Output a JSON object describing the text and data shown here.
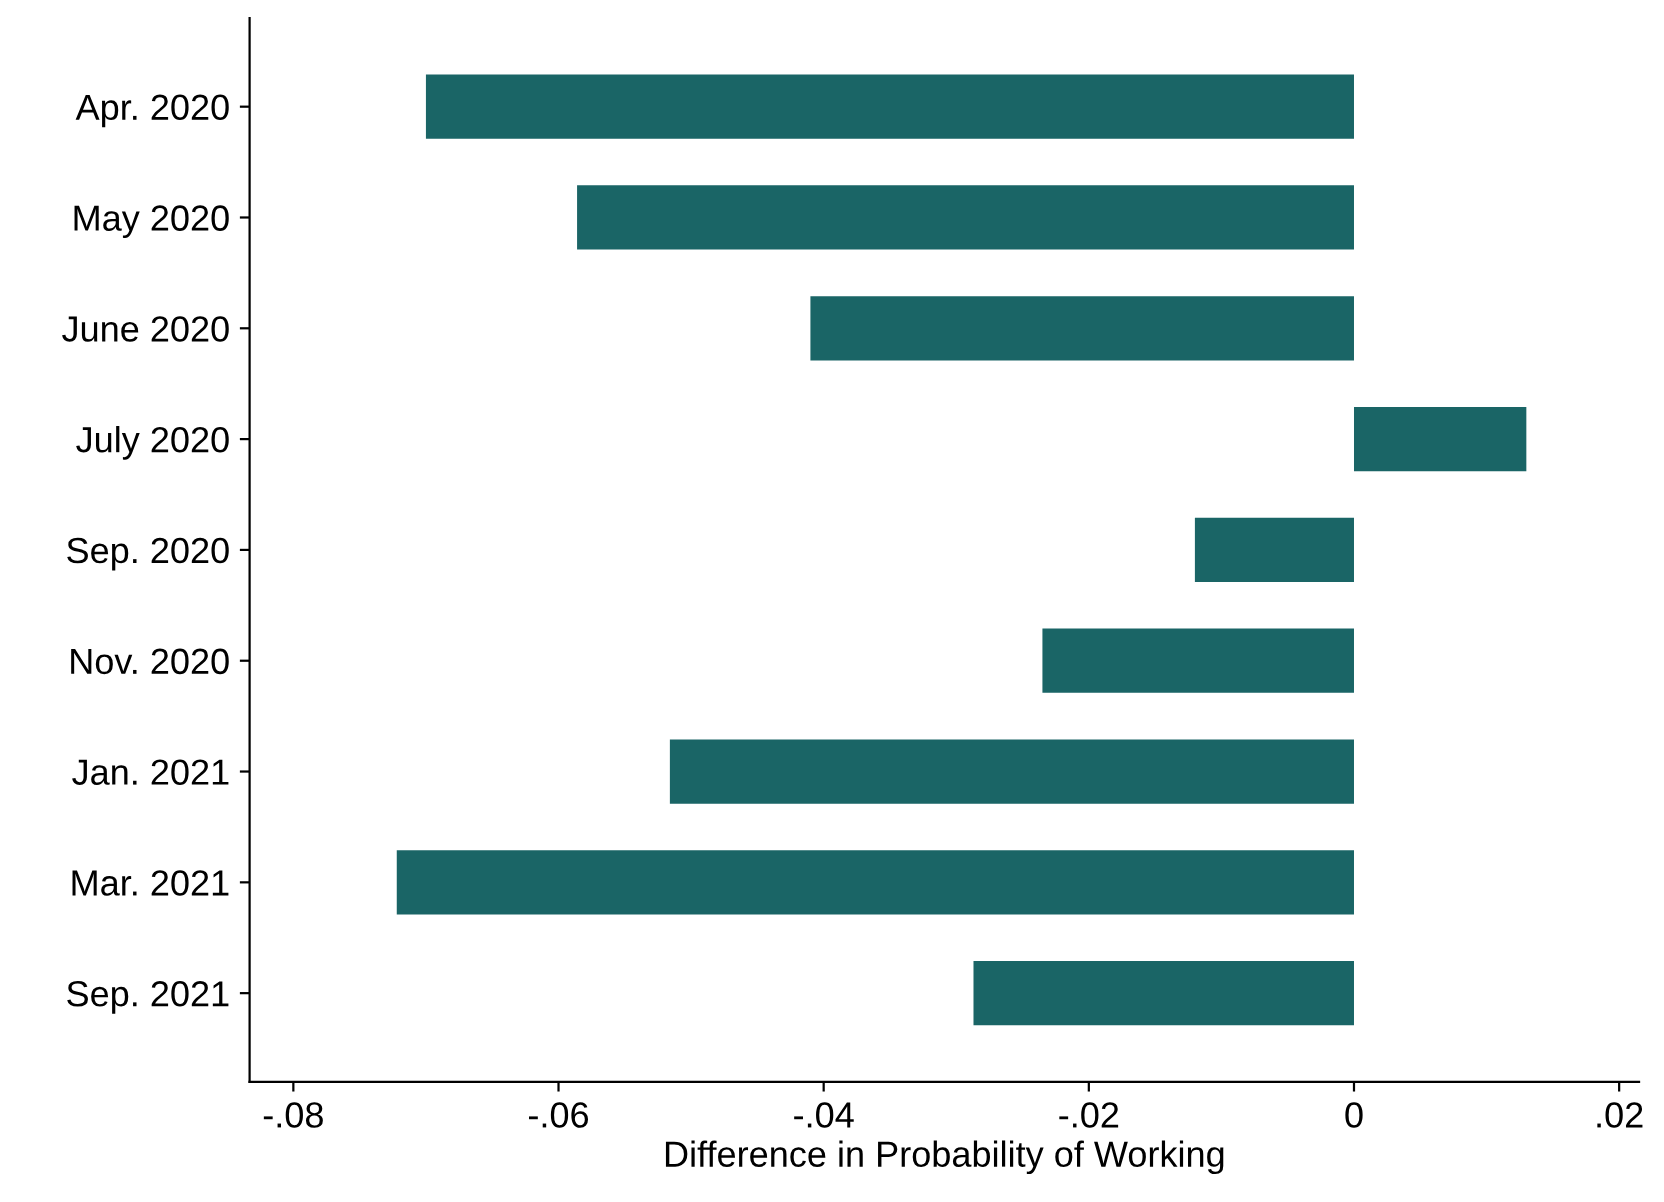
{
  "chart_data": {
    "type": "bar",
    "orientation": "horizontal",
    "xlabel": "Difference in Probability of Working",
    "categories": [
      "Apr. 2020",
      "May 2020",
      "June 2020",
      "July 2020",
      "Sep. 2020",
      "Nov. 2020",
      "Jan. 2021",
      "Mar. 2021",
      "Sep. 2021"
    ],
    "values": [
      -0.07,
      -0.0586,
      -0.041,
      0.013,
      -0.012,
      -0.0235,
      -0.0516,
      -0.0722,
      -0.0287
    ],
    "color": "#1a6566",
    "xlim": [
      -0.0833,
      0.0215
    ],
    "xticks": [
      {
        "value": -0.08,
        "label": "-.08"
      },
      {
        "value": -0.06,
        "label": "-.06"
      },
      {
        "value": -0.04,
        "label": "-.04"
      },
      {
        "value": -0.02,
        "label": "-.02"
      },
      {
        "value": 0,
        "label": "0"
      },
      {
        "value": 0.02,
        "label": ".02"
      }
    ],
    "grid": false
  }
}
